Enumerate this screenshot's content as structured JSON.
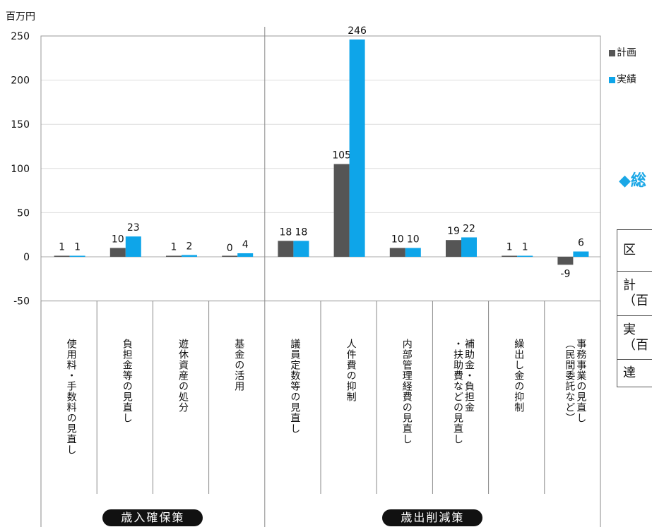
{
  "chart_data": {
    "type": "bar",
    "unit_label": "百万円",
    "ylim": [
      -50,
      250
    ],
    "yticks": [
      250,
      200,
      150,
      100,
      50,
      0,
      -50
    ],
    "categories": [
      "使用料・手数料の見直し",
      "負担金等の見直し",
      "遊休資産の処分",
      "基金の活用",
      "議員定数等の見直し",
      "人件費の抑制",
      "内部管理経費の見直し",
      "補助金・負担金・扶助費などの見直し",
      "繰出し金の抑制",
      "事務事業の見直し（民間委託など）"
    ],
    "series": [
      {
        "name": "計画",
        "color": "#555555",
        "values": [
          1,
          10,
          1,
          0,
          18,
          105,
          10,
          19,
          1,
          -9
        ]
      },
      {
        "name": "実績",
        "color": "#0ea5e9",
        "values": [
          1,
          23,
          2,
          4,
          18,
          246,
          10,
          22,
          1,
          6
        ]
      }
    ],
    "groups": [
      {
        "label": "歳入確保策",
        "start": 0,
        "end": 3
      },
      {
        "label": "歳出削減策",
        "start": 4,
        "end": 9
      }
    ],
    "grid": "horizontal",
    "legend": "right"
  },
  "category_lines": [
    [
      "使用料・手数料の見直し"
    ],
    [
      "負担金等の見直し"
    ],
    [
      "遊休資産の処分"
    ],
    [
      "基金の活用"
    ],
    [
      "議員定数等の見直し"
    ],
    [
      "人件費の抑制"
    ],
    [
      "内部管理経費の見直し"
    ],
    [
      "補助金・負担金",
      "・扶助費などの見直し"
    ],
    [
      "繰出し金の抑制"
    ],
    [
      "事務事業の見直し",
      "（民間委託など）"
    ]
  ],
  "side_panel": {
    "title_fragment": "◆総",
    "table_cells": [
      [
        "区"
      ],
      [
        "計",
        "（百"
      ],
      [
        "実",
        "（百"
      ],
      [
        "達"
      ]
    ]
  }
}
